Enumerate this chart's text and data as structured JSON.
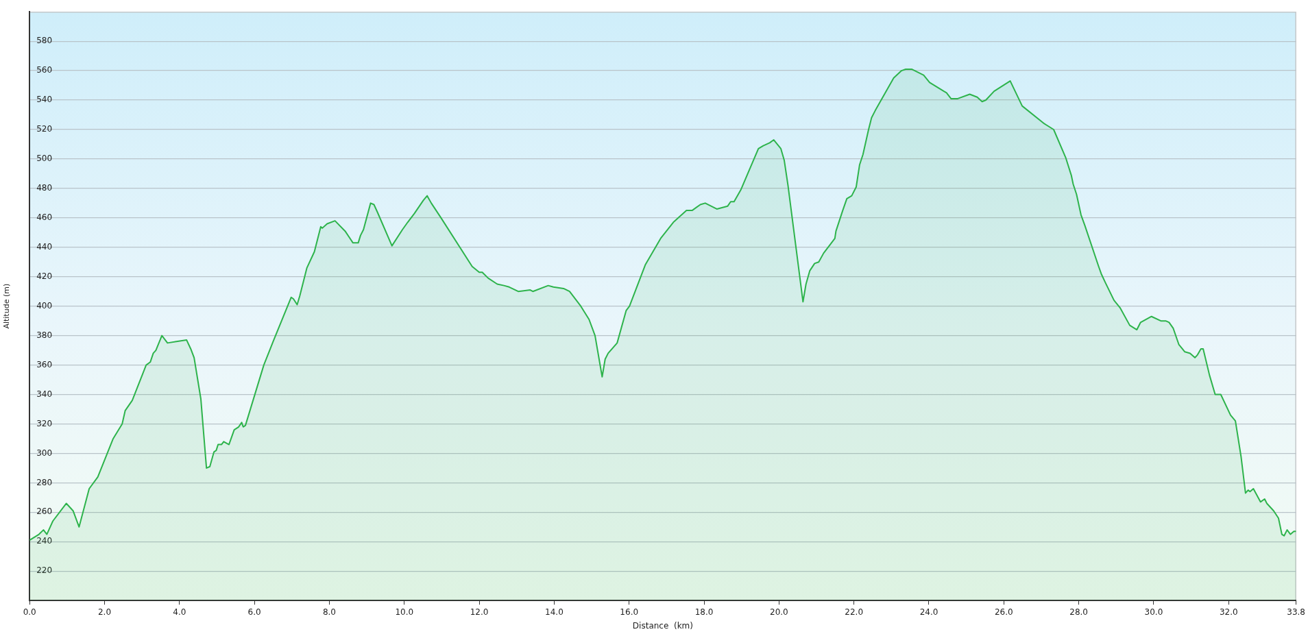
{
  "chart_data": {
    "type": "area",
    "xlabel": "Distance  (km)",
    "ylabel": "Altitude (m)",
    "x": [
      0,
      0.25,
      0.37,
      0.46,
      0.62,
      0.98,
      1.16,
      1.32,
      1.59,
      1.82,
      2.23,
      2.47,
      2.55,
      2.74,
      3.11,
      3.22,
      3.3,
      3.37,
      3.53,
      3.68,
      3.92,
      4.19,
      4.3,
      4.39,
      4.57,
      4.72,
      4.81,
      4.92,
      4.98,
      5.03,
      5.12,
      5.18,
      5.32,
      5.46,
      5.58,
      5.66,
      5.7,
      5.76,
      6.25,
      6.5,
      6.98,
      7.04,
      7.14,
      7.21,
      7.4,
      7.6,
      7.77,
      7.81,
      7.94,
      8.15,
      8.42,
      8.63,
      8.77,
      8.83,
      8.91,
      9.1,
      9.19,
      9.28,
      9.67,
      9.95,
      10.09,
      10.27,
      10.51,
      10.61,
      10.72,
      10.98,
      11.81,
      12.0,
      12.08,
      12.24,
      12.48,
      12.66,
      12.8,
      13.04,
      13.36,
      13.43,
      13.84,
      13.98,
      14.25,
      14.41,
      14.71,
      14.93,
      15.09,
      15.28,
      15.36,
      15.44,
      15.68,
      15.92,
      16.01,
      16.43,
      16.84,
      17.18,
      17.53,
      17.68,
      17.9,
      18.03,
      18.34,
      18.63,
      18.71,
      18.8,
      18.98,
      19.45,
      19.58,
      19.75,
      19.86,
      20.05,
      20.14,
      20.24,
      20.64,
      20.72,
      20.82,
      20.95,
      21.06,
      21.19,
      21.49,
      21.52,
      21.7,
      21.81,
      21.94,
      22.06,
      22.15,
      22.24,
      22.39,
      22.47,
      22.57,
      23.06,
      23.27,
      23.38,
      23.54,
      23.86,
      24.02,
      24.4,
      24.47,
      24.59,
      24.77,
      25.09,
      25.29,
      25.42,
      25.52,
      25.74,
      26.17,
      26.49,
      27.08,
      27.33,
      27.65,
      27.8,
      27.85,
      27.94,
      28.06,
      28.16,
      28.53,
      28.6,
      28.71,
      28.94,
      29.1,
      29.36,
      29.55,
      29.65,
      29.94,
      30.19,
      30.32,
      30.41,
      30.52,
      30.67,
      30.83,
      30.97,
      31.1,
      31.17,
      31.26,
      31.32,
      31.49,
      31.64,
      31.79,
      32.05,
      32.18,
      32.33,
      32.45,
      32.52,
      32.57,
      32.66,
      32.85,
      32.96,
      33.02,
      33.2,
      33.33,
      33.42,
      33.48,
      33.56,
      33.65,
      33.74,
      33.8
    ],
    "series": [
      {
        "color": "#2db34b",
        "values": [
          241,
          245,
          248,
          245,
          254,
          266,
          261,
          250,
          276,
          284,
          310,
          320,
          329,
          336,
          360,
          362,
          368,
          370,
          380,
          375,
          376,
          377,
          371,
          365,
          337,
          290,
          291,
          301,
          302,
          306,
          306,
          308,
          306,
          316,
          318,
          321,
          318,
          319,
          360,
          376,
          406,
          405,
          401,
          407,
          426,
          437,
          454,
          453,
          456,
          458,
          451,
          443,
          443,
          448,
          452,
          470,
          469,
          464,
          441,
          452,
          457,
          463,
          472,
          475,
          470,
          460,
          427,
          423,
          423,
          419,
          415,
          414,
          413,
          410,
          411,
          410,
          414,
          413,
          412,
          410,
          400,
          391,
          380,
          352,
          364,
          368,
          375,
          397,
          400,
          428,
          446,
          457,
          465,
          465,
          469,
          470,
          466,
          468,
          471,
          471,
          479,
          507,
          509,
          511,
          513,
          507,
          499,
          482,
          403,
          415,
          424,
          429,
          430,
          436,
          446,
          451,
          465,
          473,
          475,
          481,
          496,
          503,
          520,
          528,
          533,
          555,
          560,
          561,
          561,
          557,
          552,
          546,
          545,
          541,
          541,
          544,
          542,
          539,
          540,
          546,
          553,
          536,
          524,
          520,
          501,
          489,
          483,
          476,
          462,
          455,
          427,
          422,
          416,
          404,
          399,
          387,
          384,
          389,
          393,
          390,
          390,
          389,
          385,
          374,
          369,
          368,
          365,
          367,
          371,
          371,
          353,
          340,
          340,
          326,
          322,
          298,
          273,
          275,
          274,
          276,
          267,
          269,
          266,
          261,
          256,
          245,
          244,
          248,
          245,
          247,
          247
        ]
      }
    ],
    "xlim": [
      0,
      33.8
    ],
    "ylim": [
      200,
      600
    ],
    "xticks": [
      {
        "value": 0,
        "label": "0.0"
      },
      {
        "value": 2,
        "label": "2.0"
      },
      {
        "value": 4,
        "label": "4.0"
      },
      {
        "value": 6,
        "label": "6.0"
      },
      {
        "value": 8,
        "label": "8.0"
      },
      {
        "value": 10,
        "label": "10.0"
      },
      {
        "value": 12,
        "label": "12.0"
      },
      {
        "value": 14,
        "label": "14.0"
      },
      {
        "value": 16,
        "label": "16.0"
      },
      {
        "value": 18,
        "label": "18.0"
      },
      {
        "value": 20,
        "label": "20.0"
      },
      {
        "value": 22,
        "label": "22.0"
      },
      {
        "value": 24,
        "label": "24.0"
      },
      {
        "value": 26,
        "label": "26.0"
      },
      {
        "value": 28,
        "label": "28.0"
      },
      {
        "value": 30,
        "label": "30.0"
      },
      {
        "value": 32,
        "label": "32.0"
      },
      {
        "value": 33.8,
        "label": "33.8"
      }
    ],
    "yticks": [
      220,
      240,
      260,
      280,
      300,
      320,
      340,
      360,
      380,
      400,
      420,
      440,
      460,
      480,
      500,
      520,
      540,
      560,
      580
    ],
    "grid": "y",
    "legend": false,
    "marker": "none"
  }
}
